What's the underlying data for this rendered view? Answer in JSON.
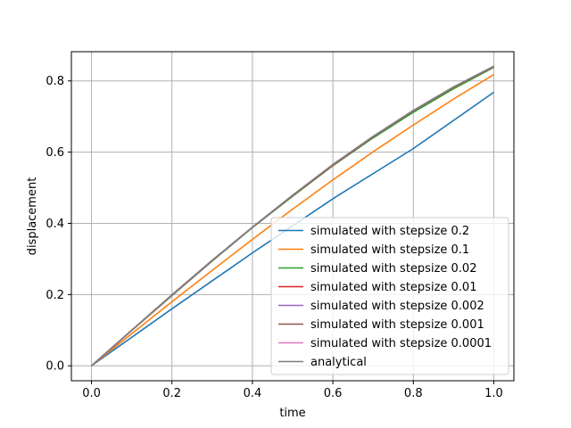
{
  "chart_data": {
    "type": "line",
    "title": "",
    "xlabel": "time",
    "ylabel": "displacement",
    "xlim": [
      -0.05,
      1.05
    ],
    "ylim": [
      -0.042,
      0.882
    ],
    "xticks": [
      0.0,
      0.2,
      0.4,
      0.6,
      0.8,
      1.0
    ],
    "xtick_labels": [
      "0.0",
      "0.2",
      "0.4",
      "0.6",
      "0.8",
      "1.0"
    ],
    "yticks": [
      0.0,
      0.2,
      0.4,
      0.6,
      0.8
    ],
    "ytick_labels": [
      "0.0",
      "0.2",
      "0.4",
      "0.6",
      "0.8"
    ],
    "grid": true,
    "legend_position": "lower right",
    "series": [
      {
        "name": "simulated with stepsize 0.2",
        "color": "#1f77b4",
        "x": [
          0.0,
          0.2,
          0.4,
          0.6,
          0.8,
          1.0
        ],
        "y": [
          0.0,
          0.16,
          0.317,
          0.469,
          0.61,
          0.768
        ]
      },
      {
        "name": "simulated with stepsize 0.1",
        "color": "#ff7f0e",
        "x": [
          0.0,
          0.1,
          0.2,
          0.3,
          0.4,
          0.5,
          0.6,
          0.7,
          0.8,
          0.9,
          1.0
        ],
        "y": [
          0.0,
          0.09,
          0.18,
          0.268,
          0.355,
          0.44,
          0.522,
          0.601,
          0.676,
          0.749,
          0.818
        ]
      },
      {
        "name": "simulated with stepsize 0.02",
        "color": "#2ca02c",
        "x": [
          0.0,
          0.1,
          0.2,
          0.3,
          0.4,
          0.5,
          0.6,
          0.7,
          0.8,
          0.9,
          1.0
        ],
        "y": [
          0.0,
          0.099,
          0.197,
          0.294,
          0.388,
          0.476,
          0.562,
          0.64,
          0.712,
          0.778,
          0.838
        ]
      },
      {
        "name": "simulated with stepsize 0.01",
        "color": "#d62728",
        "x": [
          0.0,
          0.1,
          0.2,
          0.3,
          0.4,
          0.5,
          0.6,
          0.7,
          0.8,
          0.9,
          1.0
        ],
        "y": [
          0.0,
          0.0995,
          0.198,
          0.295,
          0.389,
          0.478,
          0.563,
          0.643,
          0.716,
          0.782,
          0.84
        ]
      },
      {
        "name": "simulated with stepsize 0.002",
        "color": "#9467bd",
        "x": [
          0.0,
          0.1,
          0.2,
          0.3,
          0.4,
          0.5,
          0.6,
          0.7,
          0.8,
          0.9,
          1.0
        ],
        "y": [
          0.0,
          0.1,
          0.199,
          0.296,
          0.389,
          0.479,
          0.565,
          0.644,
          0.717,
          0.783,
          0.841
        ]
      },
      {
        "name": "simulated with stepsize 0.001",
        "color": "#8c564b",
        "x": [
          0.0,
          0.1,
          0.2,
          0.3,
          0.4,
          0.5,
          0.6,
          0.7,
          0.8,
          0.9,
          1.0
        ],
        "y": [
          0.0,
          0.1,
          0.199,
          0.296,
          0.389,
          0.479,
          0.565,
          0.644,
          0.717,
          0.783,
          0.841
        ]
      },
      {
        "name": "simulated with stepsize 0.0001",
        "color": "#e377c2",
        "x": [
          0.0,
          0.1,
          0.2,
          0.3,
          0.4,
          0.5,
          0.6,
          0.7,
          0.8,
          0.9,
          1.0
        ],
        "y": [
          0.0,
          0.1,
          0.199,
          0.296,
          0.389,
          0.479,
          0.565,
          0.644,
          0.717,
          0.783,
          0.841
        ]
      },
      {
        "name": "analytical",
        "color": "#7f7f7f",
        "x": [
          0.0,
          0.1,
          0.2,
          0.3,
          0.4,
          0.5,
          0.6,
          0.7,
          0.8,
          0.9,
          1.0
        ],
        "y": [
          0.0,
          0.1,
          0.199,
          0.296,
          0.389,
          0.479,
          0.565,
          0.644,
          0.717,
          0.783,
          0.841
        ]
      }
    ]
  }
}
